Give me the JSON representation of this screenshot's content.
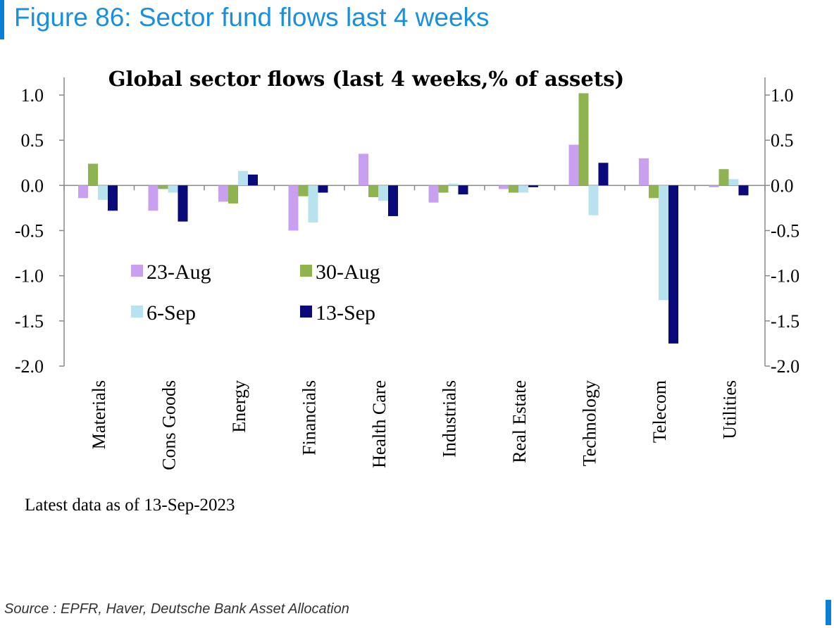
{
  "figure": {
    "title": "Figure 86: Sector fund flows last 4 weeks",
    "note": "Latest data as of 13-Sep-2023",
    "source": "Source : EPFR, Haver, Deutsche Bank Asset Allocation"
  },
  "chart_data": {
    "type": "bar",
    "title": "Global sector flows (last 4 weeks,% of assets)",
    "xlabel": "",
    "ylabel": "",
    "ylim": [
      -2.0,
      1.0
    ],
    "y_ticks": [
      "1.0",
      "0.5",
      "0.0",
      "-0.5",
      "-1.0",
      "-1.5",
      "-2.0"
    ],
    "secondary_axis": true,
    "grid": false,
    "legend_position": "inside-left",
    "categories": [
      "Materials",
      "Cons Goods",
      "Energy",
      "Financials",
      "Health Care",
      "Industrials",
      "Real Estate",
      "Technology",
      "Telecom",
      "Utilities"
    ],
    "series": [
      {
        "name": "23-Aug",
        "color": "#c9a0f0",
        "values": [
          -0.14,
          -0.28,
          -0.18,
          -0.5,
          0.35,
          -0.19,
          -0.04,
          0.45,
          0.3,
          -0.02
        ]
      },
      {
        "name": "30-Aug",
        "color": "#8fb350",
        "values": [
          0.24,
          -0.04,
          -0.2,
          -0.12,
          -0.13,
          -0.08,
          -0.08,
          1.02,
          -0.14,
          0.18
        ]
      },
      {
        "name": "6-Sep",
        "color": "#b8e2ee",
        "values": [
          -0.16,
          -0.08,
          0.16,
          -0.41,
          -0.17,
          0.02,
          -0.08,
          -0.33,
          -1.27,
          0.07
        ]
      },
      {
        "name": "13-Sep",
        "color": "#0a0a7a",
        "values": [
          -0.28,
          -0.4,
          0.12,
          -0.08,
          -0.34,
          -0.1,
          -0.02,
          0.25,
          -1.75,
          -0.11
        ]
      }
    ]
  }
}
